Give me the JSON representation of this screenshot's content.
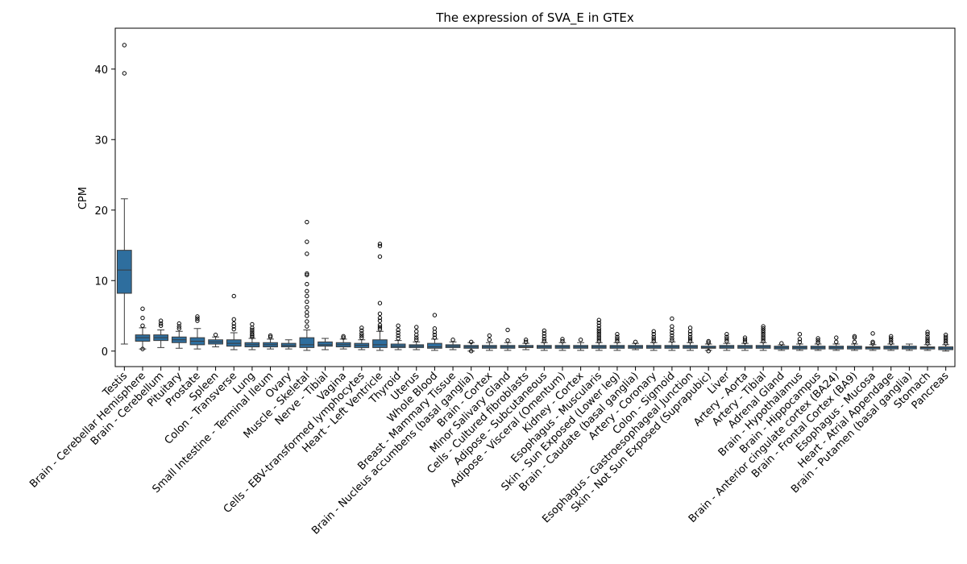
{
  "chart_data": {
    "type": "box",
    "title": "The expression of SVA_E in GTEx",
    "xlabel": "",
    "ylabel": "CPM",
    "ylim": [
      -2.2,
      45.8
    ],
    "yticks": [
      0,
      10,
      20,
      30,
      40
    ],
    "grid": false,
    "box_color": "#2e6e9e",
    "categories": [
      "Testis",
      "Brain - Cerebellar Hemisphere",
      "Brain - Cerebellum",
      "Pituitary",
      "Prostate",
      "Spleen",
      "Colon - Transverse",
      "Lung",
      "Small Intestine - Terminal Ileum",
      "Ovary",
      "Muscle - Skeletal",
      "Nerve - Tibial",
      "Vagina",
      "Cells - EBV-transformed lymphocytes",
      "Heart - Left Ventricle",
      "Thyroid",
      "Uterus",
      "Whole Blood",
      "Breast - Mammary Tissue",
      "Brain - Nucleus accumbens (basal ganglia)",
      "Brain - Cortex",
      "Minor Salivary Gland",
      "Cells - Cultured fibroblasts",
      "Adipose - Subcutaneous",
      "Adipose - Visceral (Omentum)",
      "Kidney - Cortex",
      "Esophagus - Muscularis",
      "Skin - Sun Exposed (Lower leg)",
      "Brain - Caudate (basal ganglia)",
      "Artery - Coronary",
      "Colon - Sigmoid",
      "Esophagus - Gastroesophageal Junction",
      "Skin - Not Sun Exposed (Suprapubic)",
      "Liver",
      "Artery - Aorta",
      "Artery - Tibial",
      "Adrenal Gland",
      "Brain - Hypothalamus",
      "Brain - Hippocampus",
      "Brain - Anterior cingulate cortex (BA24)",
      "Brain - Frontal Cortex (BA9)",
      "Esophagus - Mucosa",
      "Heart - Atrial Appendage",
      "Brain - Putamen (basal ganglia)",
      "Stomach",
      "Pancreas"
    ],
    "boxes": [
      {
        "whislo": 1.0,
        "q1": 8.2,
        "med": 11.5,
        "q3": 14.3,
        "whishi": 21.6,
        "fliers": [
          39.4,
          43.4
        ]
      },
      {
        "whislo": 0.3,
        "q1": 1.4,
        "med": 1.9,
        "q3": 2.3,
        "whishi": 3.3,
        "fliers": [
          0.3,
          3.6,
          4.7,
          6.0
        ]
      },
      {
        "whislo": 0.5,
        "q1": 1.5,
        "med": 1.9,
        "q3": 2.3,
        "whishi": 3.0,
        "fliers": [
          3.6,
          3.9,
          4.3
        ]
      },
      {
        "whislo": 0.4,
        "q1": 1.2,
        "med": 1.6,
        "q3": 2.0,
        "whishi": 2.8,
        "fliers": [
          3.2,
          3.5,
          3.9
        ]
      },
      {
        "whislo": 0.3,
        "q1": 0.9,
        "med": 1.4,
        "q3": 1.9,
        "whishi": 3.2,
        "fliers": [
          4.3,
          4.6,
          4.9
        ]
      },
      {
        "whislo": 0.6,
        "q1": 1.0,
        "med": 1.3,
        "q3": 1.6,
        "whishi": 2.0,
        "fliers": [
          2.3
        ]
      },
      {
        "whislo": 0.2,
        "q1": 0.7,
        "med": 1.1,
        "q3": 1.6,
        "whishi": 2.6,
        "fliers": [
          3.1,
          3.5,
          3.9,
          4.5,
          7.8
        ]
      },
      {
        "whislo": 0.2,
        "q1": 0.6,
        "med": 0.9,
        "q3": 1.2,
        "whishi": 1.8,
        "fliers": [
          2.0,
          2.2,
          2.4,
          2.7,
          3.0,
          3.3,
          3.8
        ]
      },
      {
        "whislo": 0.3,
        "q1": 0.6,
        "med": 0.9,
        "q3": 1.2,
        "whishi": 1.7,
        "fliers": [
          2.0,
          2.2
        ]
      },
      {
        "whislo": 0.3,
        "q1": 0.6,
        "med": 0.8,
        "q3": 1.1,
        "whishi": 1.6,
        "fliers": []
      },
      {
        "whislo": 0.1,
        "q1": 0.5,
        "med": 0.9,
        "q3": 1.9,
        "whishi": 3.0,
        "fliers": [
          3.5,
          4.2,
          5.0,
          5.5,
          6.2,
          7.0,
          7.8,
          8.5,
          9.5,
          10.8,
          11.0,
          13.8,
          15.5,
          18.3
        ]
      },
      {
        "whislo": 0.2,
        "q1": 0.7,
        "med": 0.9,
        "q3": 1.3,
        "whishi": 1.8,
        "fliers": []
      },
      {
        "whislo": 0.3,
        "q1": 0.6,
        "med": 0.9,
        "q3": 1.2,
        "whishi": 1.7,
        "fliers": [
          1.9,
          2.1
        ]
      },
      {
        "whislo": 0.2,
        "q1": 0.5,
        "med": 0.8,
        "q3": 1.1,
        "whishi": 1.6,
        "fliers": [
          1.9,
          2.2,
          2.5,
          2.9,
          3.3
        ]
      },
      {
        "whislo": 0.1,
        "q1": 0.5,
        "med": 0.9,
        "q3": 1.6,
        "whishi": 2.8,
        "fliers": [
          3.1,
          3.4,
          3.7,
          4.3,
          4.7,
          5.3,
          6.8,
          13.4,
          14.9,
          15.2
        ]
      },
      {
        "whislo": 0.2,
        "q1": 0.5,
        "med": 0.7,
        "q3": 1.0,
        "whishi": 1.5,
        "fliers": [
          1.8,
          2.2,
          2.6,
          3.0,
          3.6
        ]
      },
      {
        "whislo": 0.2,
        "q1": 0.5,
        "med": 0.7,
        "q3": 0.9,
        "whishi": 1.3,
        "fliers": [
          1.6,
          1.9,
          2.3,
          2.8,
          3.4
        ]
      },
      {
        "whislo": 0.1,
        "q1": 0.4,
        "med": 0.6,
        "q3": 1.1,
        "whishi": 1.7,
        "fliers": [
          1.9,
          2.3,
          2.7,
          3.2,
          5.1
        ]
      },
      {
        "whislo": 0.2,
        "q1": 0.5,
        "med": 0.7,
        "q3": 0.9,
        "whishi": 1.3,
        "fliers": [
          1.6
        ]
      },
      {
        "whislo": 0.0,
        "q1": 0.4,
        "med": 0.6,
        "q3": 0.8,
        "whishi": 1.2,
        "fliers": [
          1.3,
          0.0
        ]
      },
      {
        "whislo": 0.1,
        "q1": 0.4,
        "med": 0.6,
        "q3": 0.8,
        "whishi": 1.2,
        "fliers": [
          1.6,
          2.2
        ]
      },
      {
        "whislo": 0.1,
        "q1": 0.4,
        "med": 0.6,
        "q3": 0.8,
        "whishi": 1.2,
        "fliers": [
          1.5,
          3.0
        ]
      },
      {
        "whislo": 0.2,
        "q1": 0.5,
        "med": 0.6,
        "q3": 0.8,
        "whishi": 1.1,
        "fliers": [
          1.3,
          1.6
        ]
      },
      {
        "whislo": 0.1,
        "q1": 0.4,
        "med": 0.6,
        "q3": 0.8,
        "whishi": 1.2,
        "fliers": [
          1.4,
          1.7,
          2.1,
          2.5,
          2.9
        ]
      },
      {
        "whislo": 0.1,
        "q1": 0.4,
        "med": 0.6,
        "q3": 0.8,
        "whishi": 1.2,
        "fliers": [
          1.4,
          1.7
        ]
      },
      {
        "whislo": 0.1,
        "q1": 0.4,
        "med": 0.6,
        "q3": 0.8,
        "whishi": 1.2,
        "fliers": [
          1.6
        ]
      },
      {
        "whislo": 0.1,
        "q1": 0.4,
        "med": 0.6,
        "q3": 0.8,
        "whishi": 1.2,
        "fliers": [
          1.4,
          1.7,
          2.0,
          2.3,
          2.6,
          2.9,
          3.2,
          3.6,
          4.0,
          4.4
        ]
      },
      {
        "whislo": 0.1,
        "q1": 0.4,
        "med": 0.6,
        "q3": 0.8,
        "whishi": 1.2,
        "fliers": [
          1.4,
          1.7,
          2.0,
          2.4
        ]
      },
      {
        "whislo": 0.2,
        "q1": 0.4,
        "med": 0.6,
        "q3": 0.8,
        "whishi": 1.1,
        "fliers": [
          1.3
        ]
      },
      {
        "whislo": 0.1,
        "q1": 0.4,
        "med": 0.6,
        "q3": 0.8,
        "whishi": 1.2,
        "fliers": [
          1.4,
          1.7,
          2.0,
          2.4,
          2.8
        ]
      },
      {
        "whislo": 0.1,
        "q1": 0.4,
        "med": 0.6,
        "q3": 0.8,
        "whishi": 1.3,
        "fliers": [
          1.5,
          1.8,
          2.2,
          2.6,
          3.0,
          3.5,
          4.6
        ]
      },
      {
        "whislo": 0.1,
        "q1": 0.4,
        "med": 0.6,
        "q3": 0.8,
        "whishi": 1.2,
        "fliers": [
          1.4,
          1.7,
          2.0,
          2.4,
          2.8,
          3.3
        ]
      },
      {
        "whislo": 0.1,
        "q1": 0.4,
        "med": 0.5,
        "q3": 0.7,
        "whishi": 1.0,
        "fliers": [
          1.2,
          1.4,
          0.0
        ]
      },
      {
        "whislo": 0.1,
        "q1": 0.4,
        "med": 0.6,
        "q3": 0.8,
        "whishi": 1.1,
        "fliers": [
          1.4,
          1.7,
          2.0,
          2.4
        ]
      },
      {
        "whislo": 0.1,
        "q1": 0.4,
        "med": 0.6,
        "q3": 0.8,
        "whishi": 1.1,
        "fliers": [
          1.3,
          1.6,
          1.9
        ]
      },
      {
        "whislo": 0.1,
        "q1": 0.4,
        "med": 0.6,
        "q3": 0.8,
        "whishi": 1.2,
        "fliers": [
          1.4,
          1.7,
          2.0,
          2.3,
          2.6,
          2.9,
          3.2,
          3.5
        ]
      },
      {
        "whislo": 0.1,
        "q1": 0.3,
        "med": 0.5,
        "q3": 0.7,
        "whishi": 0.9,
        "fliers": [
          1.1
        ]
      },
      {
        "whislo": 0.1,
        "q1": 0.3,
        "med": 0.5,
        "q3": 0.7,
        "whishi": 1.0,
        "fliers": [
          1.3,
          1.7,
          2.4
        ]
      },
      {
        "whislo": 0.1,
        "q1": 0.3,
        "med": 0.5,
        "q3": 0.7,
        "whishi": 1.0,
        "fliers": [
          1.2,
          1.5,
          1.8
        ]
      },
      {
        "whislo": 0.1,
        "q1": 0.3,
        "med": 0.5,
        "q3": 0.7,
        "whishi": 1.0,
        "fliers": [
          1.3,
          1.9
        ]
      },
      {
        "whislo": 0.1,
        "q1": 0.3,
        "med": 0.5,
        "q3": 0.7,
        "whishi": 1.0,
        "fliers": [
          1.3,
          1.9,
          2.1
        ]
      },
      {
        "whislo": 0.1,
        "q1": 0.3,
        "med": 0.5,
        "q3": 0.6,
        "whishi": 0.9,
        "fliers": [
          1.1,
          1.3,
          2.5
        ]
      },
      {
        "whislo": 0.1,
        "q1": 0.3,
        "med": 0.5,
        "q3": 0.7,
        "whishi": 1.0,
        "fliers": [
          1.2,
          1.5,
          1.8,
          2.1
        ]
      },
      {
        "whislo": 0.1,
        "q1": 0.3,
        "med": 0.5,
        "q3": 0.7,
        "whishi": 1.0,
        "fliers": []
      },
      {
        "whislo": 0.1,
        "q1": 0.3,
        "med": 0.5,
        "q3": 0.6,
        "whishi": 0.9,
        "fliers": [
          1.1,
          1.4,
          1.7,
          2.0,
          2.4,
          2.7
        ]
      },
      {
        "whislo": 0.0,
        "q1": 0.2,
        "med": 0.4,
        "q3": 0.6,
        "whishi": 0.9,
        "fliers": [
          1.1,
          1.4,
          1.7,
          2.0,
          2.3
        ]
      }
    ]
  }
}
